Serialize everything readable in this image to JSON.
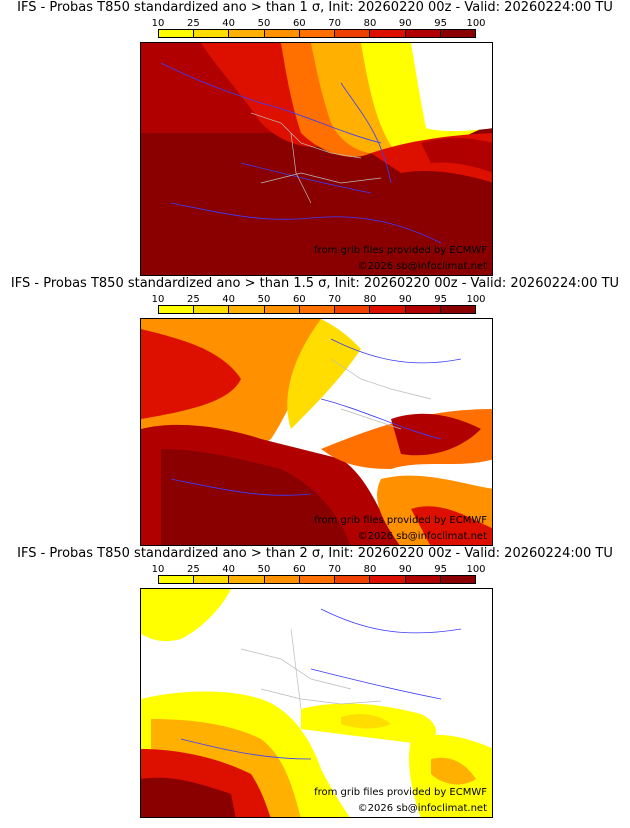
{
  "colorbar": {
    "ticks": [
      "10",
      "25",
      "40",
      "50",
      "60",
      "70",
      "80",
      "90",
      "95",
      "100"
    ],
    "colors": [
      "#ffff00",
      "#ffdd00",
      "#ffb000",
      "#ff9000",
      "#ff7000",
      "#f04000",
      "#dd1000",
      "#b00000",
      "#8a0000"
    ]
  },
  "panels": [
    {
      "title": "IFS - Probas T850  standardized ano > than 1 σ, Init: 20260220 00z - Valid: 20260224:00 TU"
    },
    {
      "title": "IFS - Probas T850  standardized ano > than 1.5 σ, Init: 20260220 00z - Valid: 20260224:00 TU"
    },
    {
      "title": "IFS - Probas T850  standardized ano > than 2 σ, Init: 20260220 00z - Valid: 20260224:00 TU"
    }
  ],
  "credits": {
    "source": "from grib files provided by ECMWF",
    "copyright": "©2026 sb@infoclimat.net"
  }
}
